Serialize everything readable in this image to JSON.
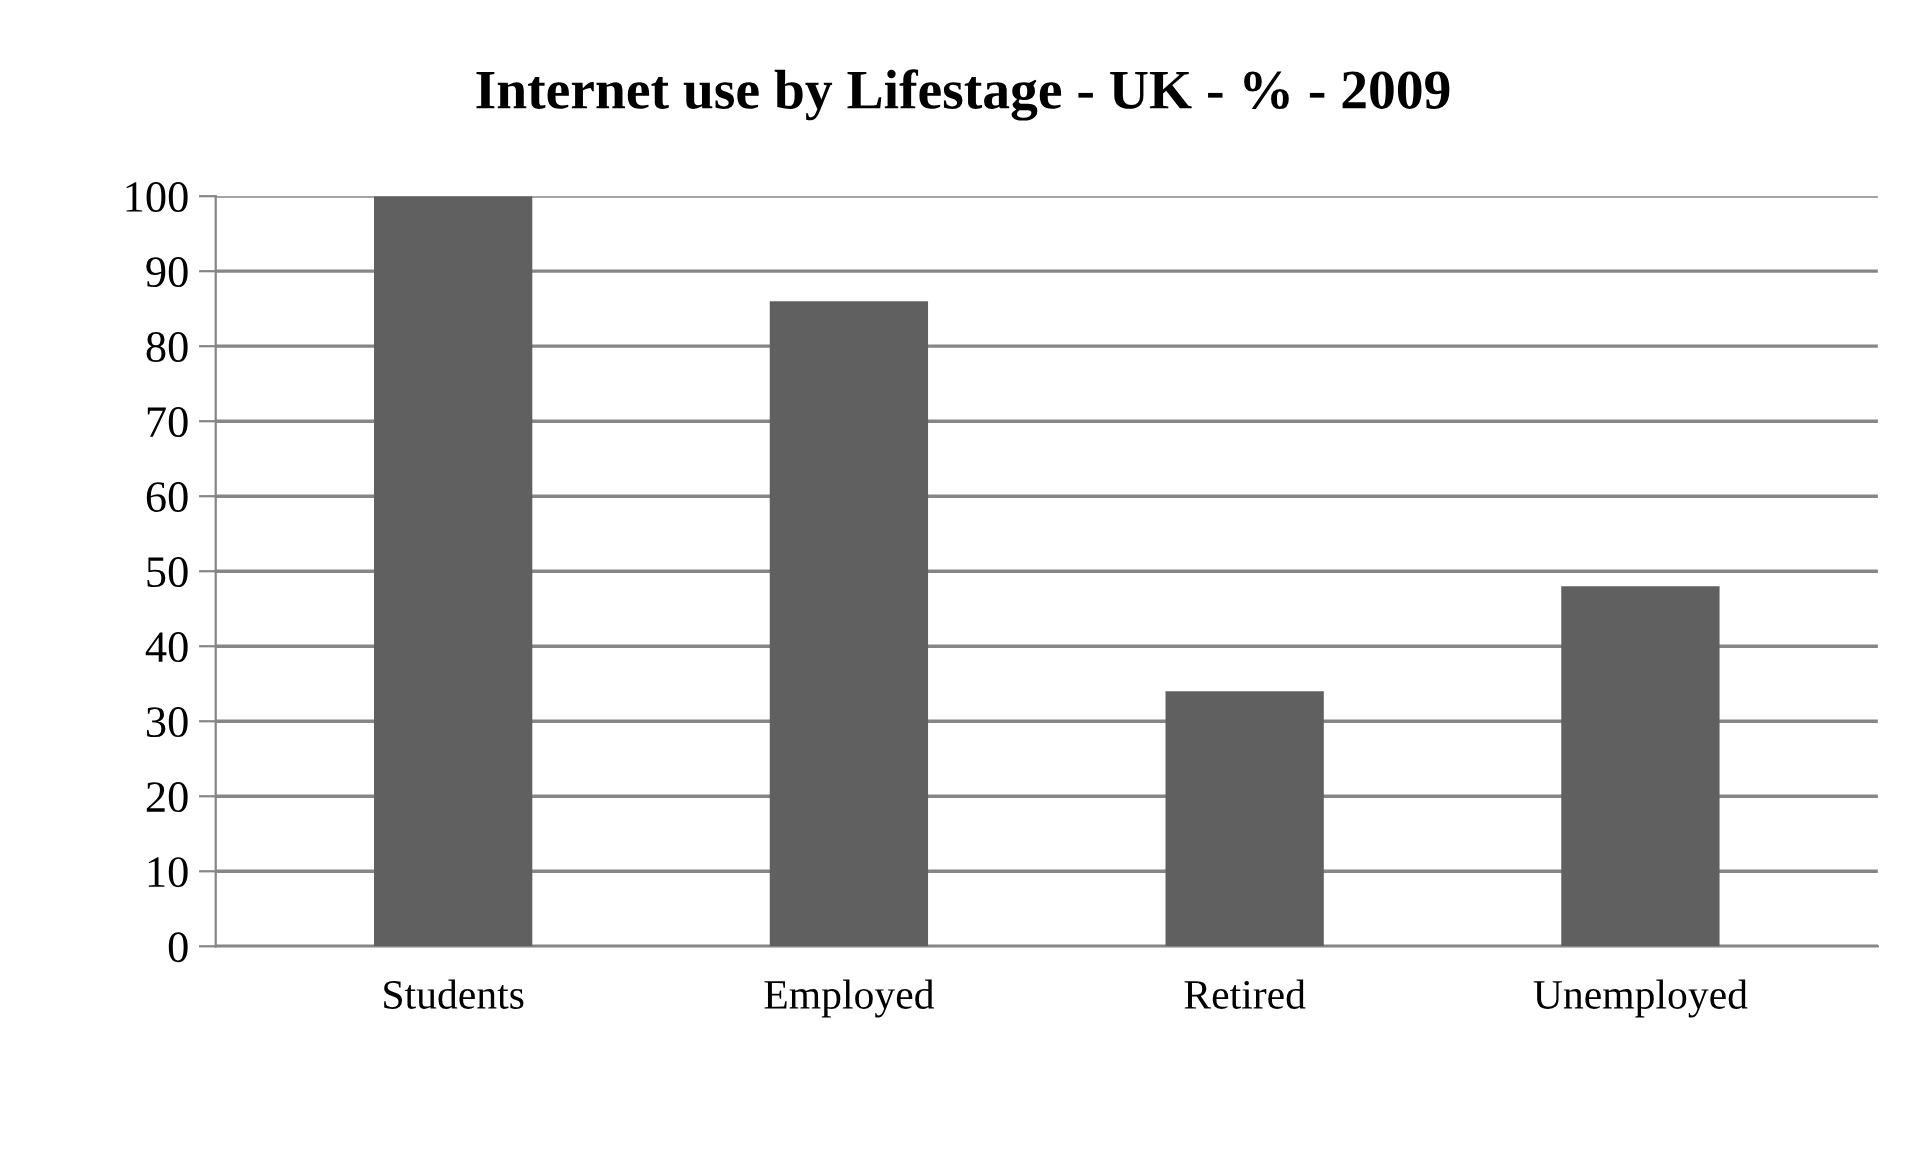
{
  "chart_data": {
    "type": "bar",
    "title": "Internet use by Lifestage - UK - % - 2009",
    "categories": [
      "Students",
      "Employed",
      "Retired",
      "Unemployed"
    ],
    "values": [
      100,
      86,
      34,
      48
    ],
    "color": "#606060",
    "ylim": [
      0,
      100
    ],
    "yticks": [
      0,
      10,
      20,
      30,
      40,
      50,
      60,
      70,
      80,
      90,
      100
    ],
    "grid": "y",
    "legend": false
  }
}
